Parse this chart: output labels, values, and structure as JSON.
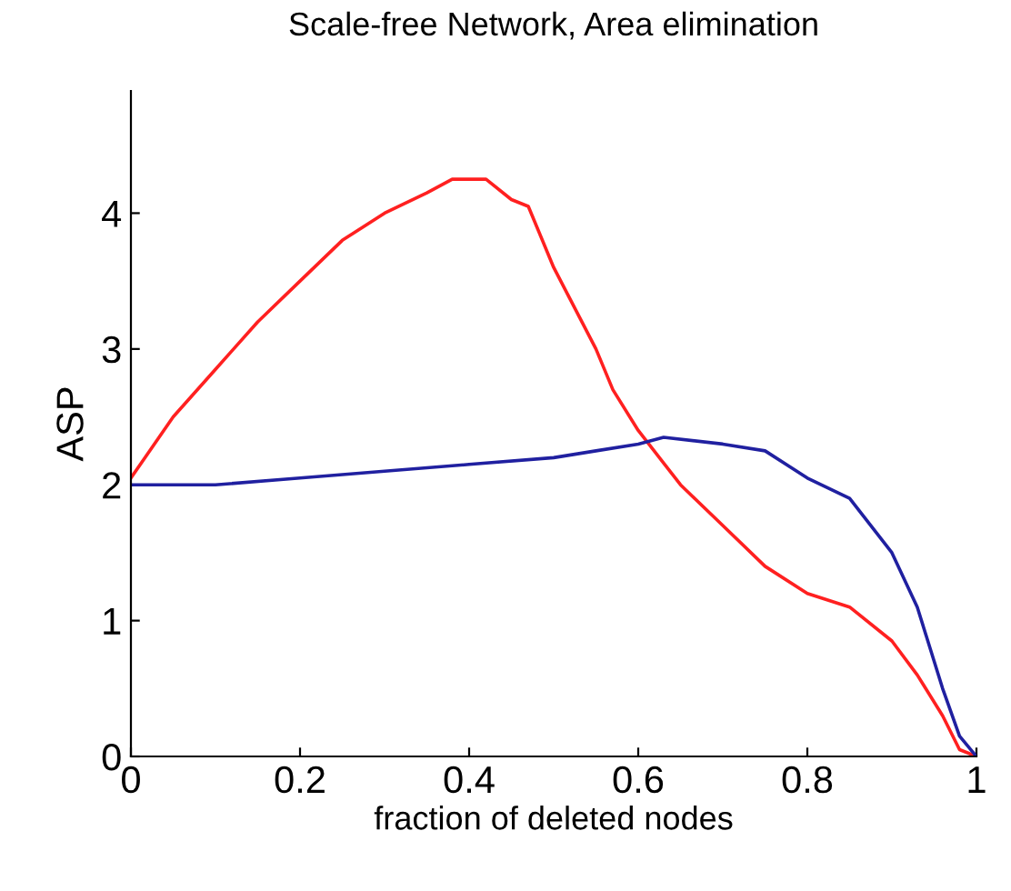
{
  "chart_data": {
    "type": "line",
    "title": "Scale-free Network, Area elimination",
    "xlabel": "fraction of deleted nodes",
    "ylabel": "ASP",
    "xlim": [
      0,
      1
    ],
    "ylim": [
      0,
      4.9
    ],
    "xticks": [
      0,
      0.2,
      0.4,
      0.6,
      0.8,
      1
    ],
    "yticks": [
      0,
      1,
      2,
      3,
      4
    ],
    "grid": false,
    "series": [
      {
        "color": "#ff2020",
        "x": [
          0,
          0.05,
          0.1,
          0.15,
          0.2,
          0.25,
          0.3,
          0.35,
          0.38,
          0.42,
          0.45,
          0.47,
          0.5,
          0.55,
          0.57,
          0.6,
          0.65,
          0.7,
          0.75,
          0.8,
          0.85,
          0.9,
          0.93,
          0.96,
          0.98,
          1.0
        ],
        "values": [
          2.05,
          2.5,
          2.85,
          3.2,
          3.5,
          3.8,
          4.0,
          4.15,
          4.25,
          4.25,
          4.1,
          4.05,
          3.6,
          3.0,
          2.7,
          2.4,
          2.0,
          1.7,
          1.4,
          1.2,
          1.1,
          0.85,
          0.6,
          0.3,
          0.05,
          0.0
        ]
      },
      {
        "color": "#2020a0",
        "x": [
          0,
          0.1,
          0.2,
          0.3,
          0.4,
          0.5,
          0.55,
          0.6,
          0.63,
          0.7,
          0.75,
          0.8,
          0.85,
          0.9,
          0.93,
          0.96,
          0.98,
          1.0
        ],
        "values": [
          2.0,
          2.0,
          2.05,
          2.1,
          2.15,
          2.2,
          2.25,
          2.3,
          2.35,
          2.3,
          2.25,
          2.05,
          1.9,
          1.5,
          1.1,
          0.5,
          0.15,
          0.0
        ]
      }
    ]
  }
}
